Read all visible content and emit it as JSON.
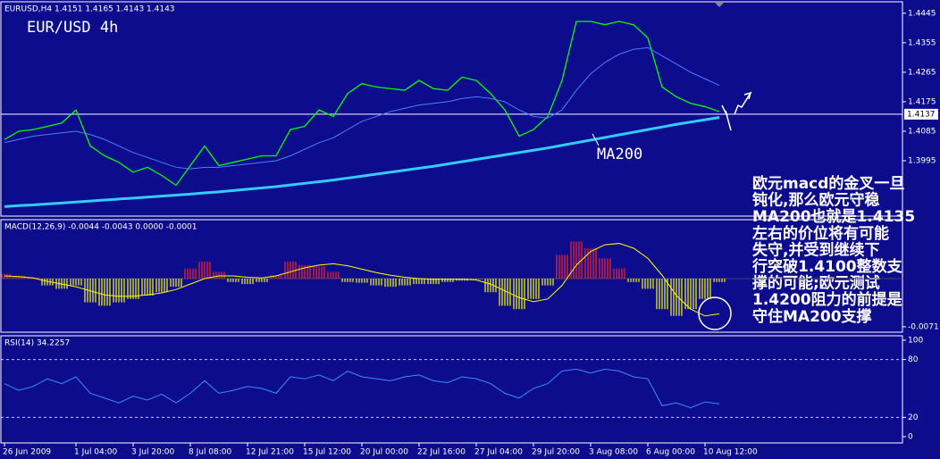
{
  "chart_data": [
    {
      "type": "line",
      "title": "EURUSD,H4  1.4151 1.4165 1.4143 1.4143",
      "heading": "EUR/USD 4h",
      "categories": [
        "26 Jun 2009",
        null,
        null,
        null,
        null,
        "1 Jul 04:00",
        null,
        null,
        null,
        "3 Jul 20:00",
        null,
        null,
        null,
        "8 Jul 08:00",
        null,
        null,
        null,
        "12 Jul 21:00",
        null,
        null,
        null,
        "15 Jul 12:00",
        null,
        null,
        null,
        "20 Jul 00:00",
        null,
        null,
        null,
        "22 Jul 16:00",
        null,
        null,
        null,
        "27 Jul 04:00",
        null,
        null,
        null,
        "29 Jul 20:00",
        null,
        null,
        null,
        "3 Aug 08:00",
        null,
        null,
        null,
        "6 Aug 00:00",
        null,
        null,
        null,
        "10 Aug 12:00",
        null
      ],
      "ylim": [
        1.3826,
        1.448
      ],
      "yticks": [
        1.3995,
        1.4085,
        1.4175,
        1.4265,
        1.4355,
        1.4445
      ],
      "price_line": 1.4137,
      "series": [
        {
          "color": "#00ff00",
          "width": 1.3,
          "values": [
            1.406,
            1.4085,
            1.409,
            1.41,
            1.411,
            1.415,
            1.404,
            1.401,
            1.399,
            1.396,
            1.3975,
            1.395,
            1.392,
            1.398,
            1.404,
            1.398,
            1.399,
            1.4,
            1.401,
            1.401,
            1.409,
            1.41,
            1.415,
            1.413,
            1.42,
            1.423,
            1.422,
            1.4215,
            1.421,
            1.424,
            1.4215,
            1.421,
            1.425,
            1.424,
            1.42,
            1.415,
            1.407,
            1.409,
            1.413,
            1.424,
            1.442,
            1.442,
            1.441,
            1.442,
            1.441,
            1.437,
            1.422,
            1.419,
            1.417,
            1.416,
            1.4145
          ]
        },
        {
          "color": "#4f7dff",
          "width": 1,
          "values": [
            1.405,
            1.406,
            1.407,
            1.4075,
            1.408,
            1.4085,
            1.4075,
            1.406,
            1.404,
            1.402,
            1.4005,
            1.399,
            1.3975,
            1.397,
            1.3975,
            1.3975,
            1.398,
            1.3985,
            1.399,
            1.3995,
            1.401,
            1.403,
            1.405,
            1.4065,
            1.409,
            1.4115,
            1.413,
            1.4145,
            1.4155,
            1.4165,
            1.417,
            1.4175,
            1.4185,
            1.419,
            1.4185,
            1.4175,
            1.415,
            1.413,
            1.4125,
            1.415,
            1.421,
            1.426,
            1.4295,
            1.432,
            1.4335,
            1.434,
            1.4315,
            1.429,
            1.4265,
            1.4245,
            1.4225
          ]
        },
        {
          "name": "MA200",
          "color": "#33ccff",
          "width": 3,
          "values": [
            1.3855,
            1.3858,
            1.386,
            1.3863,
            1.3866,
            1.3869,
            1.3872,
            1.3875,
            1.3878,
            1.3881,
            1.3884,
            1.3887,
            1.389,
            1.3893,
            1.3897,
            1.39,
            1.3904,
            1.3908,
            1.3912,
            1.3916,
            1.3921,
            1.3926,
            1.3931,
            1.3936,
            1.3942,
            1.3948,
            1.3954,
            1.396,
            1.3966,
            1.3972,
            1.3978,
            1.3985,
            1.3992,
            1.3999,
            1.4006,
            1.4013,
            1.402,
            1.4027,
            1.4034,
            1.4042,
            1.405,
            1.4058,
            1.4066,
            1.4074,
            1.4082,
            1.409,
            1.4098,
            1.4106,
            1.4113,
            1.412,
            1.4127
          ]
        }
      ],
      "annotation_lines": [
        "欧元macd的金叉一旦",
        "钝化,那么欧元守稳",
        "MA200也就是1.4135",
        "左右的价位将有可能",
        "失守,并受到继续下",
        "行突破1.4100整数支",
        "撑的可能;欧元测试",
        "1.4200阻力的前提是",
        "守住MA200支撑"
      ]
    },
    {
      "type": "bar",
      "title": "MACD(12,26,9) -0.0044 -0.0043 0.0000 -0.0001",
      "ylim": [
        -0.0079,
        0.0087
      ],
      "yticks": [
        -0.0071
      ],
      "up_color": "#ff2020",
      "down_color": "#ffff00",
      "values": [
        0.0007,
        0.0004,
        0.0002,
        -0.001,
        -0.0015,
        -0.001,
        -0.0035,
        -0.004,
        -0.0035,
        -0.003,
        -0.0025,
        -0.002,
        -0.0012,
        0.0015,
        0.0025,
        0.001,
        -0.0005,
        -0.0008,
        -0.0005,
        0.0005,
        0.0025,
        0.002,
        0.0018,
        0.001,
        -0.0005,
        -0.0006,
        -0.001,
        -0.0012,
        -0.001,
        -0.0008,
        -0.0008,
        -0.0005,
        -0.0003,
        -0.0001,
        -0.002,
        -0.004,
        -0.0045,
        -0.003,
        -0.001,
        0.0035,
        0.0055,
        0.0045,
        0.003,
        0.0015,
        -0.0005,
        -0.0015,
        -0.0045,
        -0.0055,
        -0.0045,
        -0.003,
        -0.0005
      ],
      "series": [
        {
          "color": "#ffff00",
          "width": 1,
          "values": [
            0.0004,
            0.0003,
            0.0001,
            -0.0004,
            -0.0008,
            -0.0012,
            -0.0018,
            -0.0024,
            -0.0026,
            -0.0026,
            -0.0024,
            -0.0021,
            -0.0016,
            -0.0008,
            0.0,
            0.0004,
            0.0004,
            0.0002,
            0.0001,
            0.0004,
            0.001,
            0.0016,
            0.002,
            0.0022,
            0.0019,
            0.0014,
            0.0009,
            0.0005,
            0.0002,
            0.0,
            -0.0001,
            -0.0001,
            -0.0001,
            -0.0002,
            -0.0008,
            -0.0018,
            -0.0028,
            -0.0034,
            -0.003,
            -0.001,
            0.002,
            0.004,
            0.005,
            0.0052,
            0.0045,
            0.003,
            0.0005,
            -0.0025,
            -0.0045,
            -0.0055,
            -0.0052
          ]
        }
      ]
    },
    {
      "type": "line",
      "title": "RSI(14) 34.2257",
      "ylim": [
        -6.5,
        104.6
      ],
      "yticks": [
        0,
        20,
        80,
        100
      ],
      "levels": [
        20,
        80
      ],
      "series": [
        {
          "color": "#3a8cff",
          "width": 1,
          "values": [
            55,
            48,
            52,
            60,
            55,
            62,
            45,
            40,
            35,
            42,
            38,
            44,
            35,
            45,
            58,
            45,
            48,
            52,
            50,
            45,
            62,
            60,
            64,
            58,
            68,
            62,
            60,
            58,
            62,
            64,
            58,
            56,
            62,
            60,
            55,
            45,
            40,
            50,
            55,
            68,
            70,
            66,
            70,
            68,
            62,
            60,
            32,
            35,
            30,
            36,
            34
          ]
        }
      ]
    }
  ]
}
